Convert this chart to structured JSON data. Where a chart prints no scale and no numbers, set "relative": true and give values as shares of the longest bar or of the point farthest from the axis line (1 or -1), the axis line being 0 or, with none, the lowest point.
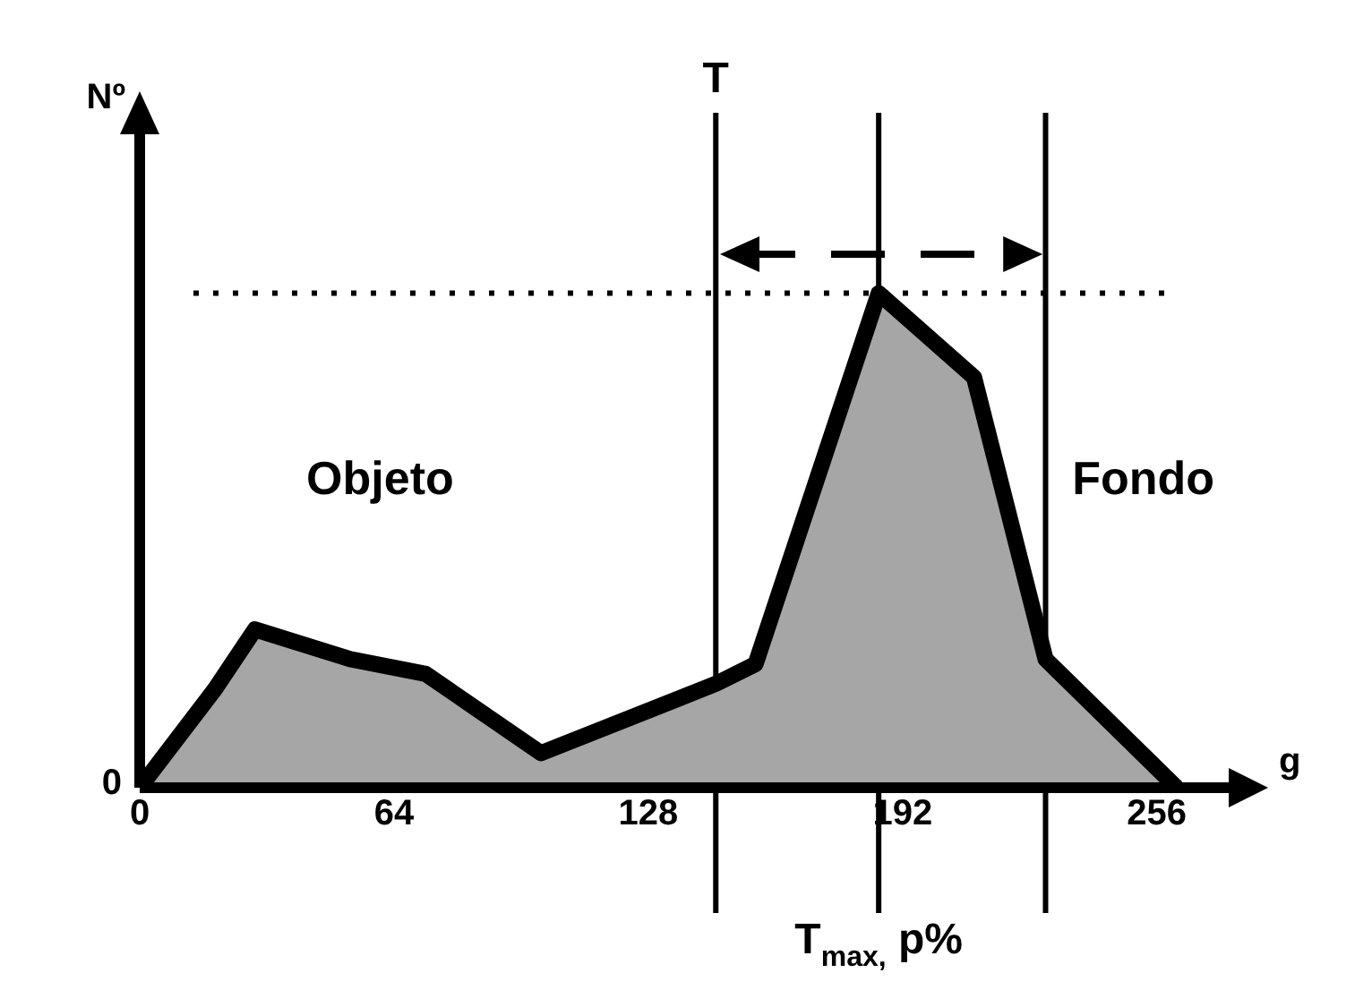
{
  "chart_data": {
    "type": "area",
    "relative": true,
    "xlabel": "g",
    "ylabel": "Nº",
    "x": [
      0,
      19,
      29,
      53,
      72,
      101,
      145,
      155,
      186,
      210,
      228,
      261
    ],
    "series": [
      {
        "color": "#a6a6a6",
        "values": [
          0,
          0.2,
          0.32,
          0.26,
          0.23,
          0.07,
          0.21,
          0.25,
          1,
          0.83,
          0.26,
          0
        ]
      }
    ],
    "xlim": [
      0,
      275
    ],
    "xticks": [
      0,
      64,
      128,
      192,
      256
    ],
    "grid": false,
    "legend": false,
    "marker": "none",
    "line_style": "solid",
    "ref_lines": [
      {
        "axis": "x",
        "value": 145,
        "label": "T"
      },
      {
        "axis": "x",
        "value": 186,
        "label": "T$_{max,}$ p%"
      },
      {
        "axis": "x",
        "value": 228
      },
      {
        "axis": "y",
        "value": 1,
        "line_style": "dotted"
      }
    ],
    "annotations": [
      "Objeto",
      "Fondo",
      "0"
    ]
  }
}
